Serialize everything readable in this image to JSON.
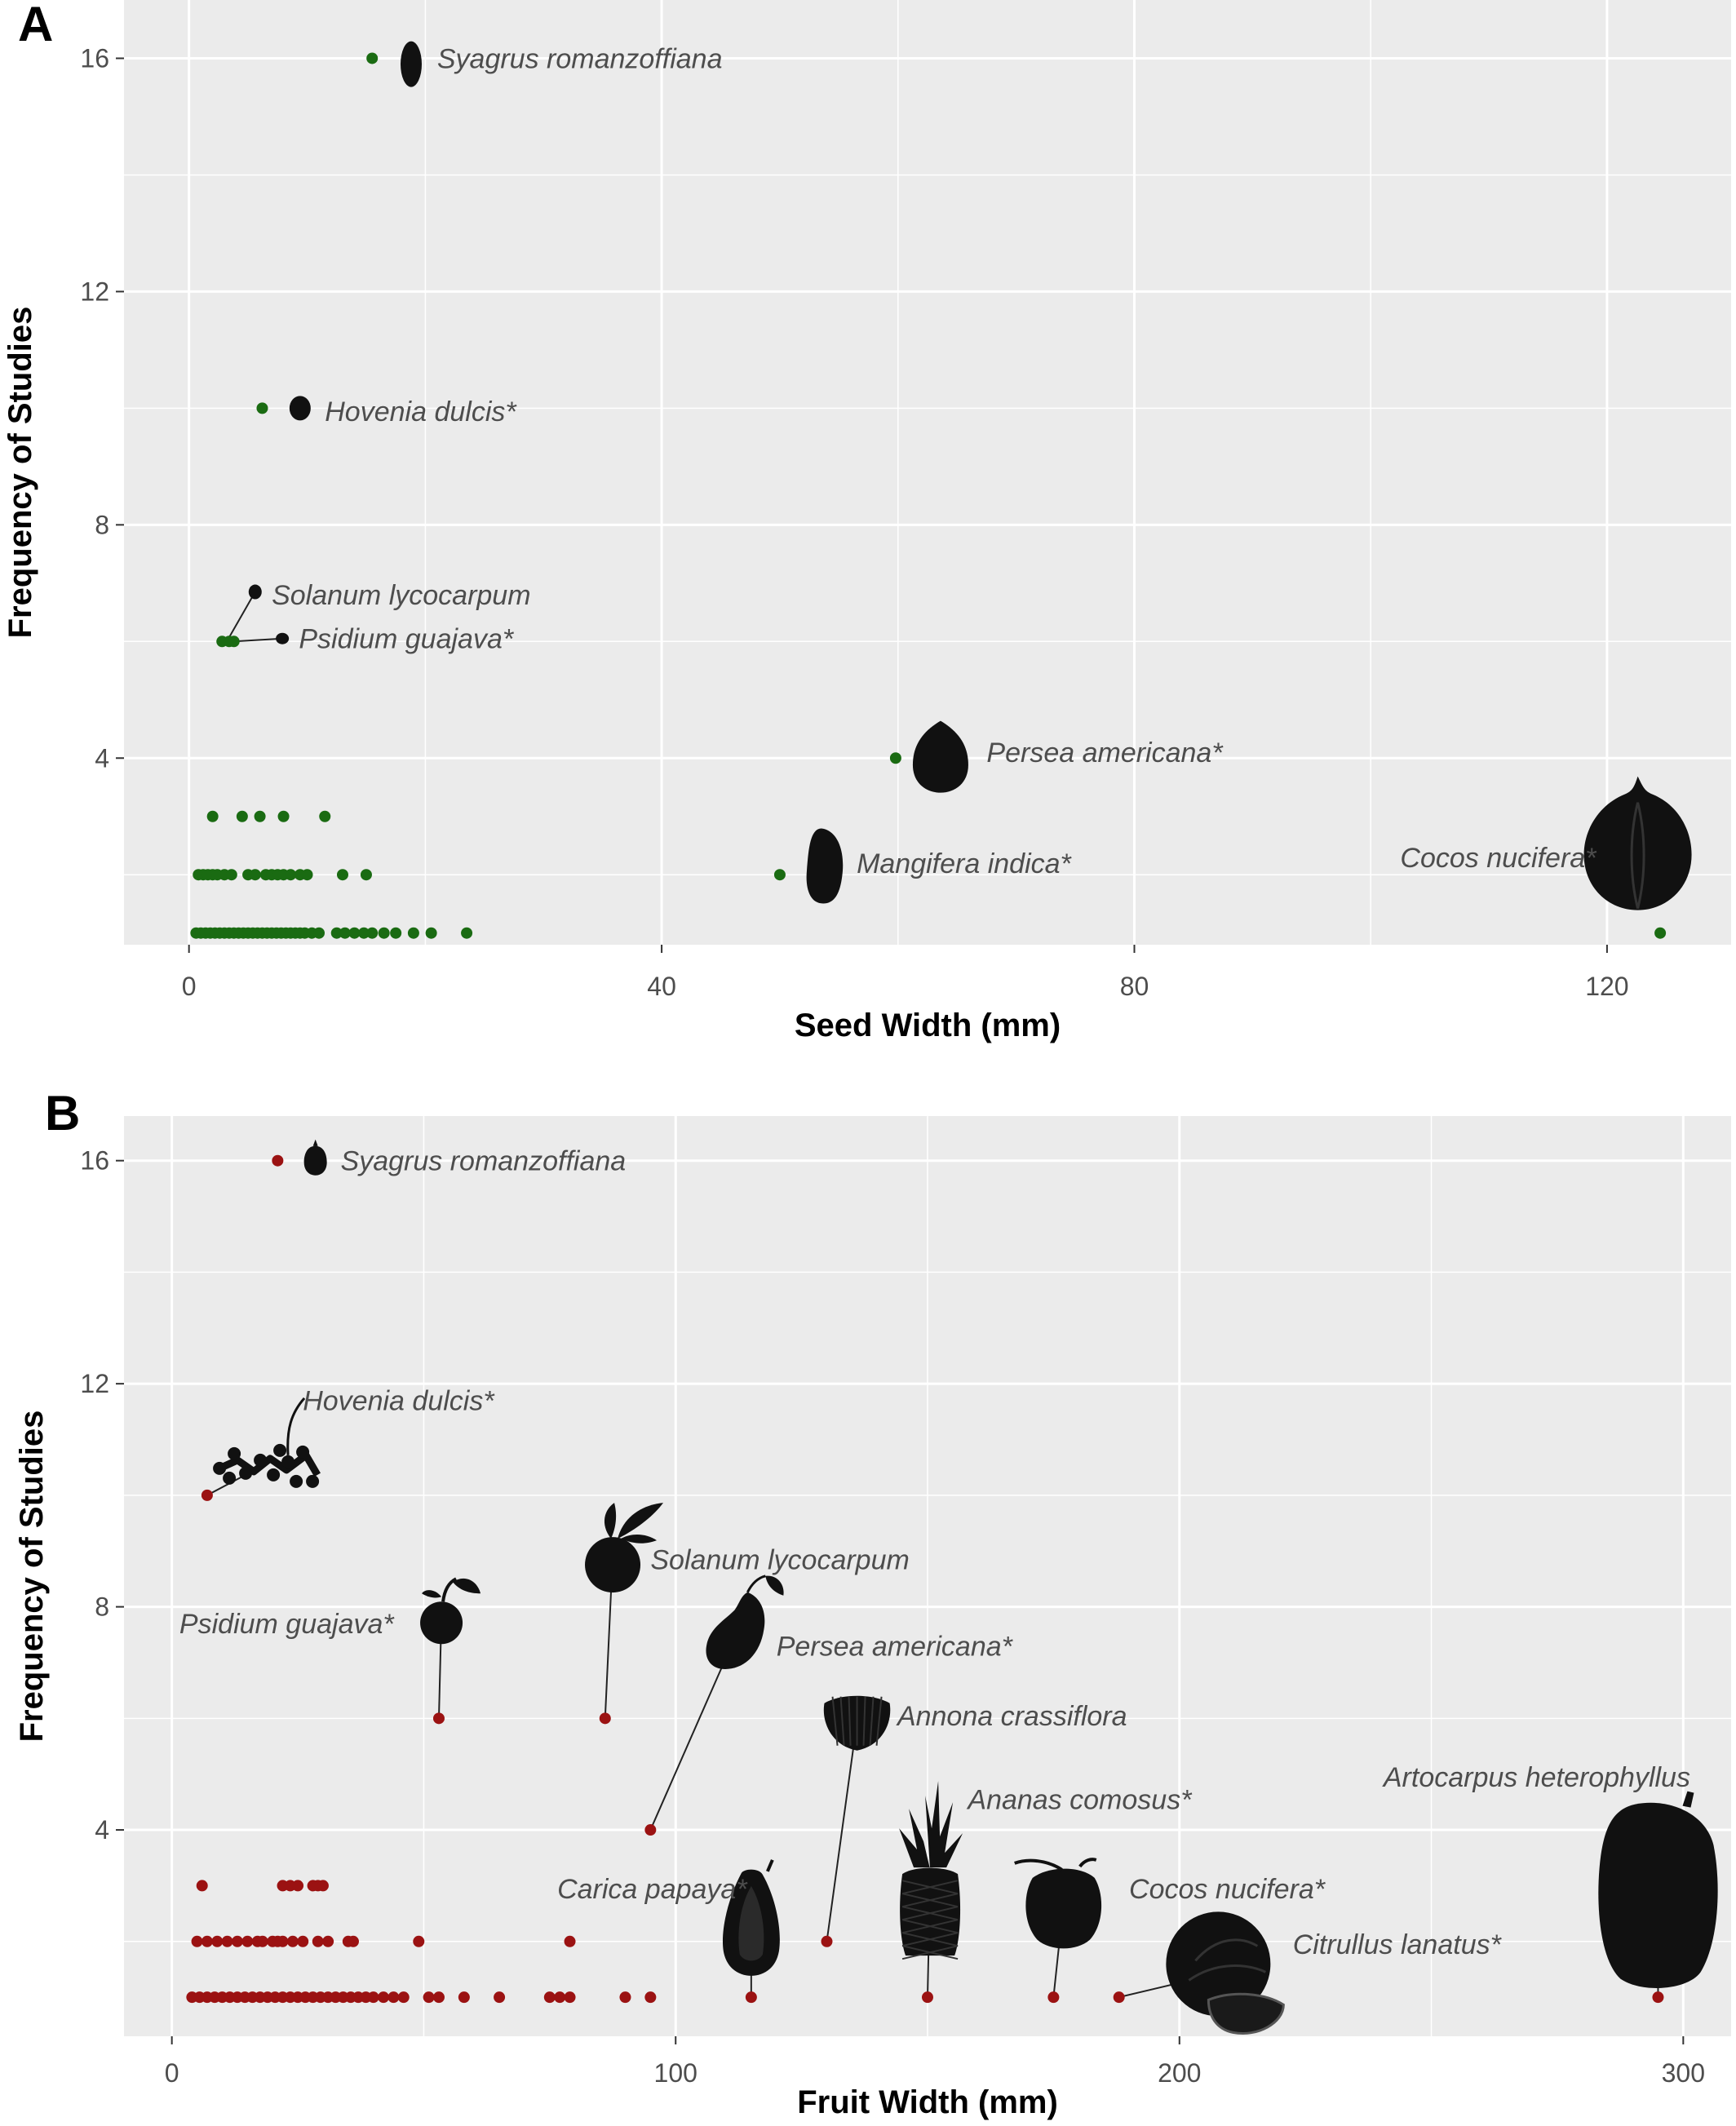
{
  "chart_data": [
    {
      "panel": "A",
      "type": "scatter",
      "xlabel": "Seed Width (mm)",
      "ylabel": "Frequency of Studies",
      "xlim": [
        -5.5,
        130.5
      ],
      "ylim": [
        0.8,
        17.0
      ],
      "xticks": [
        0,
        40,
        80,
        120
      ],
      "yticks": [
        4,
        8,
        12,
        16
      ],
      "grid": true,
      "point_color": "#1a6b12",
      "points": [
        {
          "x": 15.5,
          "y": 16
        },
        {
          "x": 6.2,
          "y": 10
        },
        {
          "x": 2.8,
          "y": 6
        },
        {
          "x": 3.4,
          "y": 6
        },
        {
          "x": 3.8,
          "y": 6
        },
        {
          "x": 59.8,
          "y": 4
        },
        {
          "x": 2,
          "y": 3
        },
        {
          "x": 4.5,
          "y": 3
        },
        {
          "x": 6,
          "y": 3
        },
        {
          "x": 8,
          "y": 3
        },
        {
          "x": 11.5,
          "y": 3
        },
        {
          "x": 0.8,
          "y": 2
        },
        {
          "x": 1.2,
          "y": 2
        },
        {
          "x": 1.6,
          "y": 2
        },
        {
          "x": 2,
          "y": 2
        },
        {
          "x": 2.4,
          "y": 2
        },
        {
          "x": 3,
          "y": 2
        },
        {
          "x": 3.6,
          "y": 2
        },
        {
          "x": 5,
          "y": 2
        },
        {
          "x": 5.6,
          "y": 2
        },
        {
          "x": 6.5,
          "y": 2
        },
        {
          "x": 7,
          "y": 2
        },
        {
          "x": 7.5,
          "y": 2
        },
        {
          "x": 8,
          "y": 2
        },
        {
          "x": 8.6,
          "y": 2
        },
        {
          "x": 9.4,
          "y": 2
        },
        {
          "x": 10,
          "y": 2
        },
        {
          "x": 13,
          "y": 2
        },
        {
          "x": 15,
          "y": 2
        },
        {
          "x": 50,
          "y": 2
        },
        {
          "x": 0.6,
          "y": 1
        },
        {
          "x": 1,
          "y": 1
        },
        {
          "x": 1.4,
          "y": 1
        },
        {
          "x": 1.8,
          "y": 1
        },
        {
          "x": 2.2,
          "y": 1
        },
        {
          "x": 2.6,
          "y": 1
        },
        {
          "x": 3,
          "y": 1
        },
        {
          "x": 3.4,
          "y": 1
        },
        {
          "x": 3.8,
          "y": 1
        },
        {
          "x": 4.2,
          "y": 1
        },
        {
          "x": 4.6,
          "y": 1
        },
        {
          "x": 5,
          "y": 1
        },
        {
          "x": 5.4,
          "y": 1
        },
        {
          "x": 5.8,
          "y": 1
        },
        {
          "x": 6.2,
          "y": 1
        },
        {
          "x": 6.6,
          "y": 1
        },
        {
          "x": 7,
          "y": 1
        },
        {
          "x": 7.4,
          "y": 1
        },
        {
          "x": 7.8,
          "y": 1
        },
        {
          "x": 8.2,
          "y": 1
        },
        {
          "x": 8.6,
          "y": 1
        },
        {
          "x": 9,
          "y": 1
        },
        {
          "x": 9.4,
          "y": 1
        },
        {
          "x": 9.8,
          "y": 1
        },
        {
          "x": 10.4,
          "y": 1
        },
        {
          "x": 11,
          "y": 1
        },
        {
          "x": 12.5,
          "y": 1
        },
        {
          "x": 13.2,
          "y": 1
        },
        {
          "x": 14,
          "y": 1
        },
        {
          "x": 14.8,
          "y": 1
        },
        {
          "x": 15.5,
          "y": 1
        },
        {
          "x": 16.5,
          "y": 1
        },
        {
          "x": 17.5,
          "y": 1
        },
        {
          "x": 19,
          "y": 1
        },
        {
          "x": 20.5,
          "y": 1
        },
        {
          "x": 23.5,
          "y": 1
        },
        {
          "x": 124.5,
          "y": 1
        }
      ],
      "annotations": [
        {
          "text": "Syagrus romanzoffiana",
          "x": 21,
          "y": 16.0,
          "icon": "palm-seed-icon",
          "ix": 18.8,
          "iy": 15.9,
          "pt": [
            15.5,
            16
          ]
        },
        {
          "text": "Hovenia dulcis*",
          "x": 11.5,
          "y": 9.95,
          "icon": "hovenia-seed-icon",
          "ix": 9.4,
          "iy": 10.0,
          "pt": [
            6.2,
            10
          ]
        },
        {
          "text": "Solanum lycocarpum",
          "x": 7.0,
          "y": 6.8,
          "icon": "solanum-seed-icon",
          "ix": 5.6,
          "iy": 6.85,
          "pt": [
            3.2,
            6
          ],
          "leader": true
        },
        {
          "text": "Psidium guajava*",
          "x": 9.3,
          "y": 6.05,
          "icon": "psidium-seed-icon",
          "ix": 7.9,
          "iy": 6.05,
          "pt": [
            3.8,
            6
          ],
          "leader": true
        },
        {
          "text": "Persea americana*",
          "x": 67.5,
          "y": 4.1,
          "icon": "avocado-seed-icon",
          "ix": 63.6,
          "iy": 4.05,
          "pt": [
            59.8,
            4
          ]
        },
        {
          "text": "Mangifera indica*",
          "x": 56.5,
          "y": 2.2,
          "icon": "mango-seed-icon",
          "ix": 53.8,
          "iy": 2.15,
          "pt": [
            50,
            2
          ]
        },
        {
          "text": "Cocos nucifera*",
          "x": 102.5,
          "y": 2.3,
          "anchor": "start",
          "icon": "coconut-seed-icon",
          "ix": 122.6,
          "iy": 2.4,
          "pt": [
            124.5,
            1
          ]
        }
      ]
    },
    {
      "panel": "B",
      "type": "scatter",
      "xlabel": "Fruit Width (mm)",
      "ylabel": "Frequency of Studies",
      "xlim": [
        -9.5,
        309.5
      ],
      "ylim": [
        0.3,
        16.8
      ],
      "xticks": [
        0,
        100,
        200,
        300
      ],
      "yticks": [
        4,
        8,
        12,
        16
      ],
      "grid": true,
      "point_color": "#9b1212",
      "points": [
        {
          "x": 21,
          "y": 16
        },
        {
          "x": 7,
          "y": 10
        },
        {
          "x": 53,
          "y": 6
        },
        {
          "x": 86,
          "y": 6
        },
        {
          "x": 95,
          "y": 4
        },
        {
          "x": 6,
          "y": 3
        },
        {
          "x": 22,
          "y": 3
        },
        {
          "x": 23.5,
          "y": 3
        },
        {
          "x": 25,
          "y": 3
        },
        {
          "x": 28,
          "y": 3
        },
        {
          "x": 29,
          "y": 3
        },
        {
          "x": 30,
          "y": 3
        },
        {
          "x": 5,
          "y": 2
        },
        {
          "x": 7,
          "y": 2
        },
        {
          "x": 9,
          "y": 2
        },
        {
          "x": 11,
          "y": 2
        },
        {
          "x": 13,
          "y": 2
        },
        {
          "x": 15,
          "y": 2
        },
        {
          "x": 17,
          "y": 2
        },
        {
          "x": 18,
          "y": 2
        },
        {
          "x": 20,
          "y": 2
        },
        {
          "x": 21,
          "y": 2
        },
        {
          "x": 22,
          "y": 2
        },
        {
          "x": 24,
          "y": 2
        },
        {
          "x": 26,
          "y": 2
        },
        {
          "x": 29,
          "y": 2
        },
        {
          "x": 31,
          "y": 2
        },
        {
          "x": 35,
          "y": 2
        },
        {
          "x": 36,
          "y": 2
        },
        {
          "x": 49,
          "y": 2
        },
        {
          "x": 79,
          "y": 2
        },
        {
          "x": 130,
          "y": 2
        },
        {
          "x": 4,
          "y": 1
        },
        {
          "x": 5.5,
          "y": 1
        },
        {
          "x": 7,
          "y": 1
        },
        {
          "x": 8.5,
          "y": 1
        },
        {
          "x": 10,
          "y": 1
        },
        {
          "x": 11.5,
          "y": 1
        },
        {
          "x": 13,
          "y": 1
        },
        {
          "x": 14.5,
          "y": 1
        },
        {
          "x": 16,
          "y": 1
        },
        {
          "x": 17.5,
          "y": 1
        },
        {
          "x": 19,
          "y": 1
        },
        {
          "x": 20.5,
          "y": 1
        },
        {
          "x": 22,
          "y": 1
        },
        {
          "x": 23.5,
          "y": 1
        },
        {
          "x": 25,
          "y": 1
        },
        {
          "x": 26.5,
          "y": 1
        },
        {
          "x": 28,
          "y": 1
        },
        {
          "x": 29.5,
          "y": 1
        },
        {
          "x": 31,
          "y": 1
        },
        {
          "x": 32.5,
          "y": 1
        },
        {
          "x": 34,
          "y": 1
        },
        {
          "x": 35.5,
          "y": 1
        },
        {
          "x": 37,
          "y": 1
        },
        {
          "x": 38.5,
          "y": 1
        },
        {
          "x": 40,
          "y": 1
        },
        {
          "x": 42,
          "y": 1
        },
        {
          "x": 44,
          "y": 1
        },
        {
          "x": 46,
          "y": 1
        },
        {
          "x": 51,
          "y": 1
        },
        {
          "x": 53,
          "y": 1
        },
        {
          "x": 58,
          "y": 1
        },
        {
          "x": 65,
          "y": 1
        },
        {
          "x": 75,
          "y": 1
        },
        {
          "x": 77,
          "y": 1
        },
        {
          "x": 79,
          "y": 1
        },
        {
          "x": 90,
          "y": 1
        },
        {
          "x": 95,
          "y": 1
        },
        {
          "x": 115,
          "y": 1
        },
        {
          "x": 150,
          "y": 1
        },
        {
          "x": 175,
          "y": 1
        },
        {
          "x": 188,
          "y": 1
        },
        {
          "x": 295,
          "y": 1
        }
      ],
      "annotations": [
        {
          "text": "Syagrus romanzoffiana",
          "x": 33.5,
          "y": 16.0,
          "icon": "syagrus-fruit-icon",
          "ix": 28.5,
          "iy": 16.0,
          "pt": [
            21,
            16
          ]
        },
        {
          "text": "Hovenia dulcis*",
          "x": 26,
          "y": 11.7,
          "icon": "hovenia-fruit-icon",
          "ix": 19.5,
          "iy": 10.6,
          "pt": [
            7,
            10
          ],
          "leader": true
        },
        {
          "text": "Solanum lycocarpum",
          "x": 95,
          "y": 8.85,
          "icon": "solanum-fruit-icon",
          "ix": 87.5,
          "iy": 8.9,
          "pt": [
            86,
            6
          ],
          "leader": true
        },
        {
          "text": "Psidium guajava*",
          "x": 1.5,
          "y": 7.7,
          "icon": "guava-fruit-icon",
          "ix": 53.5,
          "iy": 7.8,
          "pt": [
            53,
            6
          ],
          "leader": true
        },
        {
          "text": "Persea americana*",
          "x": 120,
          "y": 7.3,
          "icon": "avocado-fruit-icon",
          "ix": 112,
          "iy": 7.5,
          "pt": [
            95,
            4
          ],
          "leader": true
        },
        {
          "text": "Annona crassiflora",
          "x": 144,
          "y": 6.05,
          "icon": "annona-fruit-icon",
          "ix": 136,
          "iy": 5.95,
          "pt": [
            130,
            2
          ],
          "leader": true
        },
        {
          "text": "Ananas comosus*",
          "x": 158,
          "y": 4.55,
          "icon": "pineapple-fruit-icon",
          "ix": 150.5,
          "iy": 3.15,
          "pt": [
            150,
            1
          ],
          "leader": true
        },
        {
          "text": "Carica papaya*",
          "x": 76.5,
          "y": 2.95,
          "icon": "papaya-fruit-icon",
          "ix": 115,
          "iy": 2.35,
          "pt": [
            115,
            1
          ],
          "leader": true
        },
        {
          "text": "Cocos nucifera*",
          "x": 190,
          "y": 2.95,
          "icon": "coconut-fruit-icon",
          "ix": 177,
          "iy": 2.7,
          "pt": [
            175,
            1
          ],
          "leader": true
        },
        {
          "text": "Citrullus lanatus*",
          "x": 222.5,
          "y": 1.95,
          "icon": "watermelon-fruit-icon",
          "ix": 209,
          "iy": 1.45,
          "pt": [
            188,
            1
          ],
          "leader": true
        },
        {
          "text": "Artocarpus heterophyllus",
          "x": 240.5,
          "y": 4.95,
          "icon": "jackfruit-fruit-icon",
          "ix": 295,
          "iy": 2.85,
          "pt": [
            295,
            1
          ],
          "leader": true
        }
      ]
    }
  ]
}
